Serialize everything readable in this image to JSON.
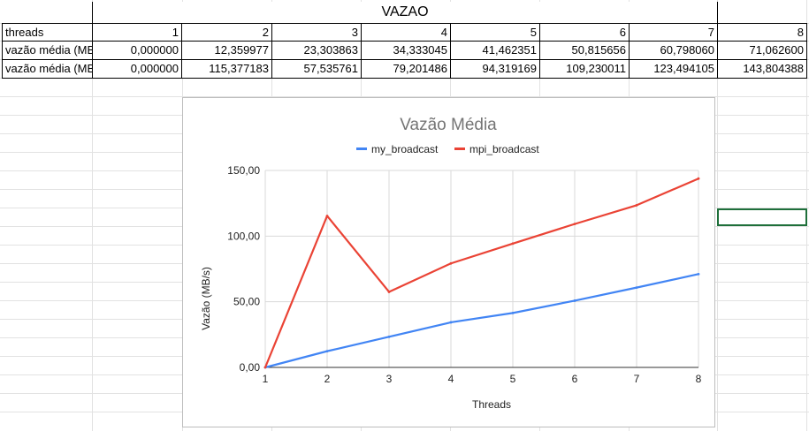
{
  "sheet": {
    "title": "VAZAO",
    "rows": [
      [
        "threads",
        "1",
        "2",
        "3",
        "4",
        "5",
        "6",
        "7",
        "8"
      ],
      [
        "vazão média (MB/s)",
        "0,000000",
        "12,359977",
        "23,303863",
        "34,333045",
        "41,462351",
        "50,815656",
        "60,798060",
        "71,062600"
      ],
      [
        "vazão média (MB/s)",
        "0,000000",
        "115,377183",
        "57,535761",
        "79,201486",
        "94,319169",
        "109,230011",
        "123,494105",
        "143,804388"
      ]
    ]
  },
  "chart_data": {
    "type": "line",
    "title": "Vazão Média",
    "xlabel": "Threads",
    "ylabel": "Vazão (MB/s)",
    "x": [
      1,
      2,
      3,
      4,
      5,
      6,
      7,
      8
    ],
    "ylim": [
      0,
      150
    ],
    "yticks": [
      "0,00",
      "50,00",
      "100,00",
      "150,00"
    ],
    "legend_position": "top",
    "grid": true,
    "series": [
      {
        "name": "my_broadcast",
        "color": "#4285f4",
        "values": [
          0.0,
          12.359977,
          23.303863,
          34.333045,
          41.462351,
          50.815656,
          60.79806,
          71.0626
        ]
      },
      {
        "name": "mpi_broadcast",
        "color": "#ea4335",
        "values": [
          0.0,
          115.377183,
          57.535761,
          79.201486,
          94.319169,
          109.230011,
          123.494105,
          143.804388
        ]
      }
    ]
  }
}
